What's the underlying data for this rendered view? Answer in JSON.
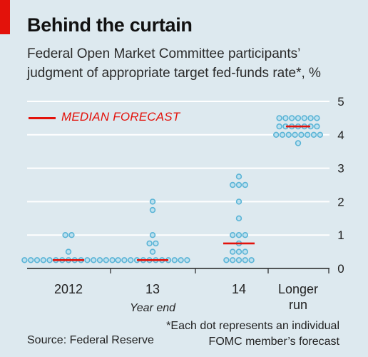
{
  "header": {
    "title": "Behind the curtain",
    "subtitle": "Federal Open Market Committee participants’ judgment of appropriate target fed-funds rate*, %"
  },
  "legend": {
    "median_label": "MEDIAN FORECAST"
  },
  "footer": {
    "source": "Source: Federal Reserve",
    "footnote_line1": "*Each dot represents an individual",
    "footnote_line2": "FOMC member’s forecast"
  },
  "colors": {
    "dot": "#5ab4d6",
    "median": "#e3120b",
    "grid": "#ffffff",
    "background": "#dde9ef"
  },
  "chart_data": {
    "type": "scatter",
    "xlabel": "Year end",
    "ylabel": "",
    "ylim": [
      0,
      5
    ],
    "y_ticks": [
      "0",
      "1",
      "2",
      "3",
      "4",
      "5"
    ],
    "categories": [
      "2012",
      "13",
      "14",
      "Longer run"
    ],
    "category_lines": [
      [
        "2012"
      ],
      [
        "13"
      ],
      [
        "14"
      ],
      [
        "Longer",
        "run"
      ]
    ],
    "grid": true,
    "series": [
      {
        "category": "2012",
        "dot_rows": [
          {
            "value": 0.25,
            "count": 15
          },
          {
            "value": 0.5,
            "count": 1
          },
          {
            "value": 1.0,
            "count": 2
          }
        ],
        "median": 0.25
      },
      {
        "category": "13",
        "dot_rows": [
          {
            "value": 0.25,
            "count": 12
          },
          {
            "value": 0.5,
            "count": 1
          },
          {
            "value": 0.75,
            "count": 2
          },
          {
            "value": 1.0,
            "count": 1
          },
          {
            "value": 1.75,
            "count": 1
          },
          {
            "value": 2.0,
            "count": 1
          }
        ],
        "median": 0.25
      },
      {
        "category": "14",
        "dot_rows": [
          {
            "value": 0.25,
            "count": 5
          },
          {
            "value": 0.5,
            "count": 3
          },
          {
            "value": 0.75,
            "count": 1
          },
          {
            "value": 1.0,
            "count": 3
          },
          {
            "value": 1.5,
            "count": 1
          },
          {
            "value": 2.0,
            "count": 1
          },
          {
            "value": 2.5,
            "count": 3
          },
          {
            "value": 2.75,
            "count": 1
          }
        ],
        "median": 0.75
      },
      {
        "category": "Longer run",
        "dot_rows": [
          {
            "value": 3.75,
            "count": 1
          },
          {
            "value": 4.0,
            "count": 8
          },
          {
            "value": 4.25,
            "count": 7
          },
          {
            "value": 4.5,
            "count": 7
          }
        ],
        "median": 4.25
      }
    ]
  }
}
